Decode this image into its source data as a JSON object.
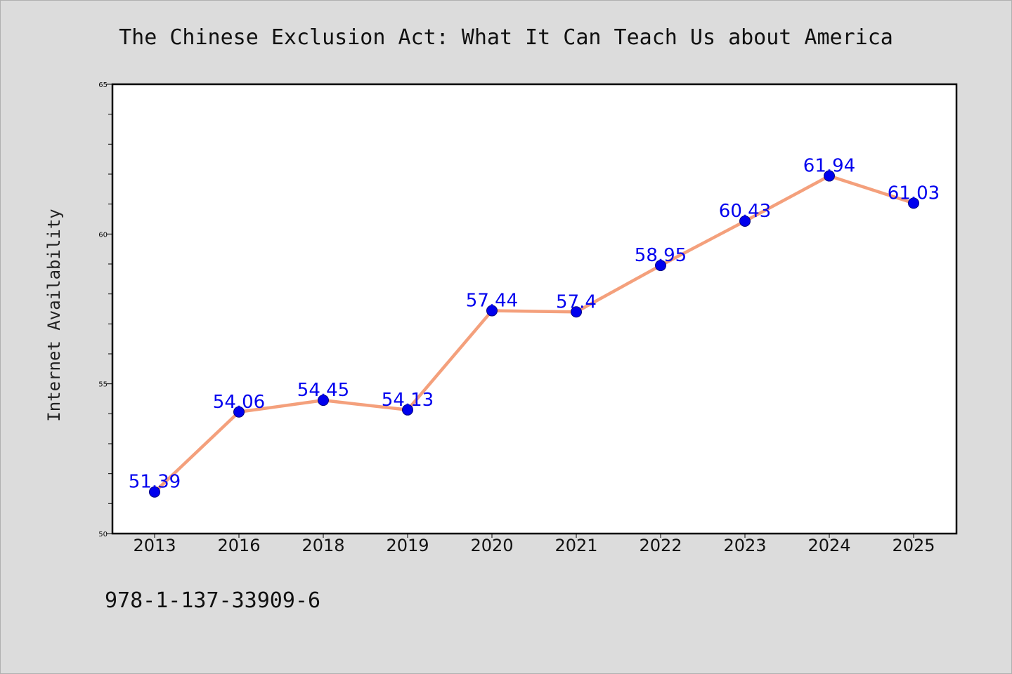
{
  "chart_data": {
    "type": "line",
    "title": "The Chinese Exclusion Act: What It Can Teach Us about America",
    "xlabel": "",
    "ylabel": "Internet Availability",
    "categories": [
      "2013",
      "2016",
      "2018",
      "2019",
      "2020",
      "2021",
      "2022",
      "2023",
      "2024",
      "2025"
    ],
    "values": [
      51.39,
      54.06,
      54.45,
      54.13,
      57.44,
      57.4,
      58.95,
      60.43,
      61.94,
      61.03
    ],
    "data_labels": [
      "51.39",
      "54.06",
      "54.45",
      "54.13",
      "57.44",
      "57.4",
      "58.95",
      "60.43",
      "61.94",
      "61.03"
    ],
    "ylim": [
      50,
      65
    ],
    "yticks": [
      "50",
      "55",
      "60",
      "65"
    ],
    "grid": false,
    "legend": "none",
    "colors": {
      "line": "#f4a07c",
      "marker": "#0000ee",
      "data_label": "#0000ee",
      "background": "#dcdcdc",
      "plot_background": "#ffffff",
      "axis": "#000000"
    }
  },
  "footer": {
    "text": "978-1-137-33909-6"
  }
}
